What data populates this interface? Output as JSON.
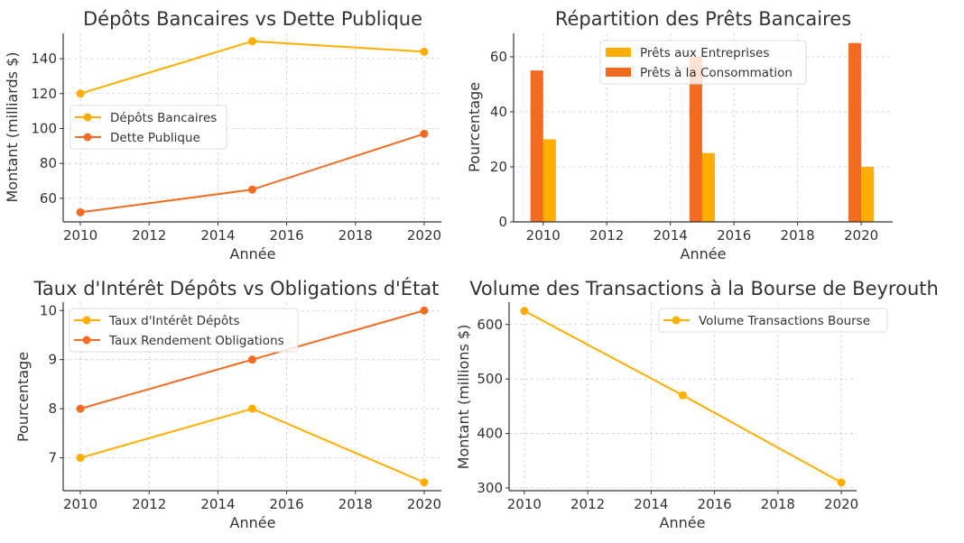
{
  "chart_data": [
    {
      "type": "line",
      "title": "Dépôts Bancaires vs Dette Publique",
      "xlabel": "Année",
      "ylabel": "Montant (milliards $)",
      "x": [
        2010,
        2015,
        2020
      ],
      "xlim": [
        2009.5,
        2020.5
      ],
      "ylim": [
        46.5,
        154.5
      ],
      "xticks": [
        2010,
        2012,
        2014,
        2016,
        2018,
        2020
      ],
      "yticks": [
        60,
        80,
        100,
        120,
        140
      ],
      "grid": true,
      "legend": "center-left",
      "series": [
        {
          "name": "Dépôts Bancaires",
          "values": [
            120,
            150,
            144
          ],
          "color": "#FFAD00"
        },
        {
          "name": "Dette Publique",
          "values": [
            52,
            65,
            97
          ],
          "color": "#F36B21"
        }
      ]
    },
    {
      "type": "bar",
      "title": "Répartition des Prêts Bancaires",
      "xlabel": "Année",
      "ylabel": "Pourcentage",
      "x": [
        2010,
        2015,
        2020
      ],
      "xlim": [
        2009.07,
        2020.99
      ],
      "ylim": [
        0,
        68.5
      ],
      "xticks": [
        2010,
        2012,
        2014,
        2016,
        2018,
        2020
      ],
      "yticks": [
        0,
        20,
        40,
        60
      ],
      "grid": true,
      "legend": "upper-center",
      "series": [
        {
          "name": "Prêts aux Entreprises",
          "values": [
            30,
            25,
            20
          ],
          "color": "#FFAD00"
        },
        {
          "name": "Prêts à la Consommation",
          "values": [
            55,
            60,
            65
          ],
          "color": "#F36B21"
        }
      ]
    },
    {
      "type": "line",
      "title": "Taux d'Intérêt Dépôts vs Obligations d'État",
      "xlabel": "Année",
      "ylabel": "Pourcentage",
      "x": [
        2010,
        2015,
        2020
      ],
      "xlim": [
        2009.5,
        2020.5
      ],
      "ylim": [
        6.33,
        10.17
      ],
      "xticks": [
        2010,
        2012,
        2014,
        2016,
        2018,
        2020
      ],
      "yticks": [
        7,
        8,
        9,
        10
      ],
      "grid": true,
      "legend": "upper-left",
      "series": [
        {
          "name": "Taux d'Intérêt Dépôts",
          "values": [
            7,
            8,
            6.5
          ],
          "color": "#FFAD00"
        },
        {
          "name": "Taux Rendement Obligations",
          "values": [
            8,
            9,
            10
          ],
          "color": "#F36B21"
        }
      ]
    },
    {
      "type": "line",
      "title": "Volume des Transactions à la Bourse de Beyrouth",
      "xlabel": "Année",
      "ylabel": "Montant (millions $)",
      "x": [
        2010,
        2015,
        2020
      ],
      "xlim": [
        2009.52,
        2020.48
      ],
      "ylim": [
        295,
        641
      ],
      "xticks": [
        2010,
        2012,
        2014,
        2016,
        2018,
        2020
      ],
      "yticks": [
        300,
        400,
        500,
        600
      ],
      "grid": true,
      "legend": "upper-right",
      "series": [
        {
          "name": "Volume Transactions Bourse",
          "values": [
            625,
            470,
            310
          ],
          "color": "#FFAD00"
        }
      ]
    }
  ]
}
